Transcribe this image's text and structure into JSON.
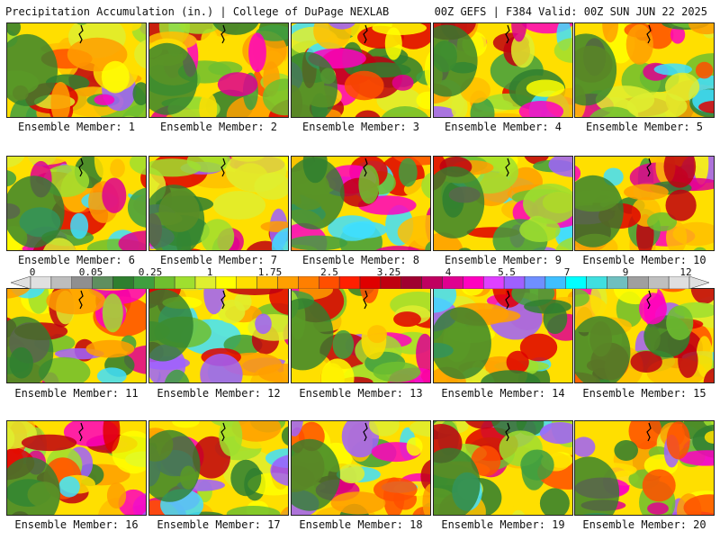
{
  "header": {
    "left": "Precipitation Accumulation (in.) | College of DuPage NEXLAB",
    "right": "00Z GEFS | F384 Valid: 00Z SUN JUN 22 2025"
  },
  "label_prefix": "Ensemble Member: ",
  "members": [
    1,
    2,
    3,
    4,
    5,
    6,
    7,
    8,
    9,
    10,
    11,
    12,
    13,
    14,
    15,
    16,
    17,
    18,
    19,
    20
  ],
  "colorbar": {
    "ticks": [
      "0",
      "0.05",
      "0.25",
      "1",
      "1.75",
      "2.5",
      "3.25",
      "4",
      "5.5",
      "7",
      "9",
      "12"
    ],
    "colors": [
      "#e0e0e0",
      "#bdbdbd",
      "#8f8f8f",
      "#5f8f5f",
      "#2f7f2f",
      "#3f9f3f",
      "#6fbf2f",
      "#9fdf2f",
      "#dfef2f",
      "#ffff00",
      "#ffdf00",
      "#ffbf00",
      "#ff9f00",
      "#ff7f00",
      "#ff4f00",
      "#ff1f00",
      "#df0000",
      "#bf0010",
      "#9f0030",
      "#bf0060",
      "#df0090",
      "#ff00c0",
      "#df40ff",
      "#9f60ff",
      "#6f8fff",
      "#3fbfff",
      "#00ffff",
      "#3fdfdf",
      "#6fbfbf",
      "#9f9f9f",
      "#bfbfbf",
      "#dfdfdf"
    ]
  }
}
